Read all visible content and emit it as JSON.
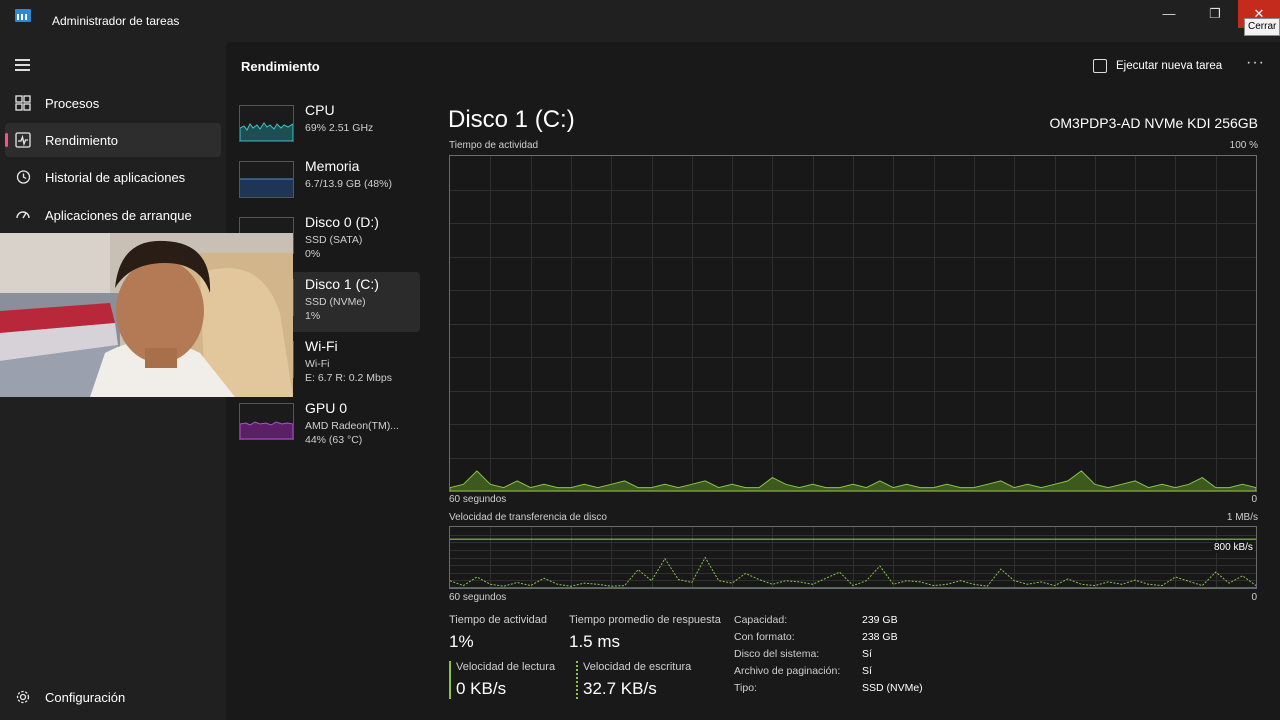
{
  "window": {
    "title": "Administrador de tareas",
    "close_tooltip": "Cerrar",
    "minimize_glyph": "—",
    "maximize_glyph": "❐",
    "close_glyph": "✕"
  },
  "nav": {
    "items": [
      {
        "label": "Procesos",
        "icon": "processes-icon"
      },
      {
        "label": "Rendimiento",
        "icon": "performance-icon"
      },
      {
        "label": "Historial de aplicaciones",
        "icon": "history-icon"
      },
      {
        "label": "Aplicaciones de arranque",
        "icon": "startup-icon"
      }
    ],
    "settings_label": "Configuración"
  },
  "header": {
    "title": "Rendimiento",
    "run_task_label": "Ejecutar nueva tarea",
    "more_glyph": "···"
  },
  "resources": [
    {
      "name": "CPU",
      "line1": "69% 2.51 GHz",
      "line2": ""
    },
    {
      "name": "Memoria",
      "line1": "6.7/13.9 GB (48%)",
      "line2": ""
    },
    {
      "name": "Disco 0 (D:)",
      "line1": "SSD (SATA)",
      "line2": "0%"
    },
    {
      "name": "Disco 1 (C:)",
      "line1": "SSD (NVMe)",
      "line2": "1%"
    },
    {
      "name": "Wi-Fi",
      "line1": "Wi-Fi",
      "line2": "E: 6.7 R: 0.2 Mbps"
    },
    {
      "name": "GPU 0",
      "line1": "AMD Radeon(TM)...",
      "line2": "44% (63 °C)"
    }
  ],
  "detail": {
    "title": "Disco 1 (C:)",
    "model": "OM3PDP3-AD NVMe KDI 256GB",
    "chart1": {
      "label": "Tiempo de actividad",
      "max_label": "100 %",
      "time_label": "60 segundos",
      "min_label": "0"
    },
    "chart2": {
      "label": "Velocidad de transferencia de disco",
      "max_label": "1 MB/s",
      "ref_label": "800 kB/s",
      "time_label": "60 segundos",
      "min_label": "0"
    },
    "stats": {
      "activity_label": "Tiempo de actividad",
      "activity_value": "1%",
      "response_label": "Tiempo promedio de respuesta",
      "response_value": "1.5 ms",
      "read_label": "Velocidad de lectura",
      "read_value": "0 KB/s",
      "write_label": "Velocidad de escritura",
      "write_value": "32.7 KB/s"
    },
    "info": [
      {
        "k": "Capacidad:",
        "v": "239 GB"
      },
      {
        "k": "Con formato:",
        "v": "238 GB"
      },
      {
        "k": "Disco del sistema:",
        "v": "Sí"
      },
      {
        "k": "Archivo de paginación:",
        "v": "Sí"
      },
      {
        "k": "Tipo:",
        "v": "SSD (NVMe)"
      }
    ]
  },
  "colors": {
    "accent": "#ff4e8b",
    "cpu": "#3fc1c9",
    "memory": "#4f8ed6",
    "disk": "#8bc34a",
    "gpu": "#b44fcb"
  },
  "chart_data": [
    {
      "type": "area",
      "title": "Tiempo de actividad",
      "ylim": [
        0,
        100
      ],
      "x_span_seconds": 60,
      "values": [
        1,
        2,
        6,
        2,
        1,
        3,
        1,
        2,
        1,
        1,
        2,
        1,
        2,
        3,
        1,
        1,
        2,
        1,
        2,
        3,
        1,
        2,
        1,
        1,
        4,
        2,
        1,
        2,
        1,
        1,
        2,
        1,
        3,
        1,
        2,
        1,
        1,
        2,
        1,
        1,
        2,
        3,
        1,
        2,
        1,
        2,
        3,
        6,
        2,
        1,
        2,
        3,
        1,
        2,
        1,
        2,
        4,
        1,
        1,
        2,
        1
      ]
    },
    {
      "type": "line",
      "title": "Velocidad de transferencia de disco",
      "ylim": [
        0,
        1000
      ],
      "unit": "kB/s",
      "series": [
        {
          "name": "Velocidad de lectura",
          "values": [
            0,
            0,
            0,
            0,
            0,
            0,
            0,
            0,
            0,
            0,
            0,
            0,
            0,
            0,
            0,
            0,
            0,
            0,
            0,
            0,
            0,
            0,
            0,
            0,
            0,
            0,
            0,
            0,
            0,
            0,
            0,
            0,
            0,
            0,
            0,
            0,
            0,
            0,
            0,
            0,
            0,
            0,
            0,
            0,
            0,
            0,
            0,
            0,
            0,
            0,
            0,
            0,
            0,
            0,
            0,
            0,
            0,
            0,
            0,
            0,
            0
          ]
        },
        {
          "name": "Velocidad de escritura",
          "values": [
            120,
            40,
            180,
            60,
            30,
            90,
            40,
            160,
            60,
            30,
            80,
            60,
            30,
            40,
            300,
            120,
            480,
            140,
            90,
            500,
            120,
            80,
            240,
            140,
            60,
            120,
            100,
            60,
            160,
            260,
            40,
            120,
            360,
            60,
            120,
            100,
            40,
            60,
            120,
            60,
            30,
            310,
            120,
            60,
            100,
            40,
            150,
            60,
            40,
            100,
            60,
            130,
            60,
            40,
            180,
            110,
            40,
            260,
            80,
            200,
            40
          ]
        }
      ]
    }
  ]
}
